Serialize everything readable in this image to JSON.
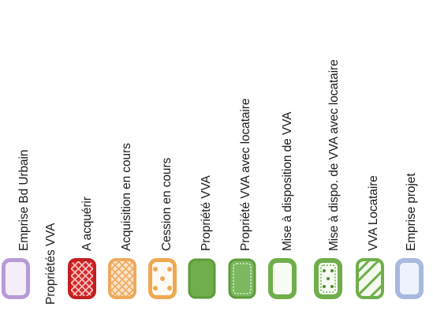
{
  "legend": {
    "items": [
      {
        "label": "Emprise Bd Urbain",
        "swatch": "lavender-outline-box",
        "color": "#b79ad6"
      },
      {
        "label": "Propriétés VVA",
        "swatch": "none"
      },
      {
        "label": "A acquérir",
        "swatch": "red-crosshatch-box",
        "color": "#d52b2b"
      },
      {
        "label": "Acquisition en cours",
        "swatch": "orange-crosshatch-box",
        "color": "#eea95d"
      },
      {
        "label": "Cession en cours",
        "swatch": "orange-dotted-outline-box",
        "color": "#f0a850"
      },
      {
        "label": "Propriété VVA",
        "swatch": "green-filled-box",
        "color": "#6fae4a"
      },
      {
        "label": "Propriété VVA avec locataire",
        "swatch": "green-dotted-box",
        "color": "#7cb860"
      },
      {
        "label": "Mise à disposition de VVA",
        "swatch": "green-outline-box",
        "color": "#6fae4a"
      },
      {
        "label": "Mise à dispo. de VVA avec locataire",
        "swatch": "green-outline-dotted-box",
        "color": "#6fae4a"
      },
      {
        "label": "VVA Locataire",
        "swatch": "green-diagonal-box",
        "color": "#6fae4a"
      },
      {
        "label": "Emprise projet",
        "swatch": "blue-outline-box",
        "color": "#a8b8de"
      }
    ]
  }
}
